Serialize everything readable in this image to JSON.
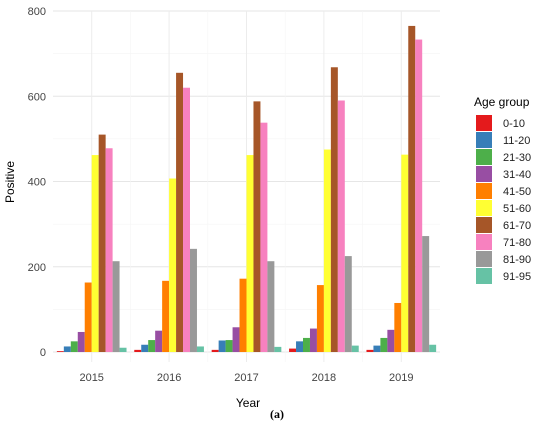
{
  "chart_data": {
    "type": "bar",
    "categories": [
      "2015",
      "2016",
      "2017",
      "2018",
      "2019"
    ],
    "xlabel": "Year",
    "ylabel": "Positive",
    "ylim": [
      0,
      800
    ],
    "yticks": [
      0,
      200,
      400,
      600,
      800
    ],
    "grid": true,
    "legend_title": "Age group",
    "legend_position": "right",
    "caption": "(a)",
    "series": [
      {
        "name": "0-10",
        "color": "#e41a1c",
        "values": [
          2,
          5,
          5,
          8,
          5
        ]
      },
      {
        "name": "11-20",
        "color": "#377eb8",
        "values": [
          13,
          17,
          27,
          25,
          15
        ]
      },
      {
        "name": "21-30",
        "color": "#4daf4a",
        "values": [
          25,
          28,
          28,
          33,
          33
        ]
      },
      {
        "name": "31-40",
        "color": "#984ea3",
        "values": [
          47,
          50,
          58,
          55,
          52
        ]
      },
      {
        "name": "41-50",
        "color": "#ff7f00",
        "values": [
          163,
          167,
          172,
          157,
          115
        ]
      },
      {
        "name": "51-60",
        "color": "#ffff33",
        "values": [
          462,
          407,
          462,
          475,
          463
        ]
      },
      {
        "name": "61-70",
        "color": "#a65628",
        "values": [
          510,
          655,
          588,
          668,
          765
        ]
      },
      {
        "name": "71-80",
        "color": "#f781bf",
        "values": [
          478,
          620,
          538,
          590,
          733
        ]
      },
      {
        "name": "81-90",
        "color": "#999999",
        "values": [
          213,
          242,
          213,
          225,
          272
        ]
      },
      {
        "name": "91-95",
        "color": "#66c2a5",
        "values": [
          10,
          13,
          12,
          15,
          17
        ]
      }
    ]
  }
}
